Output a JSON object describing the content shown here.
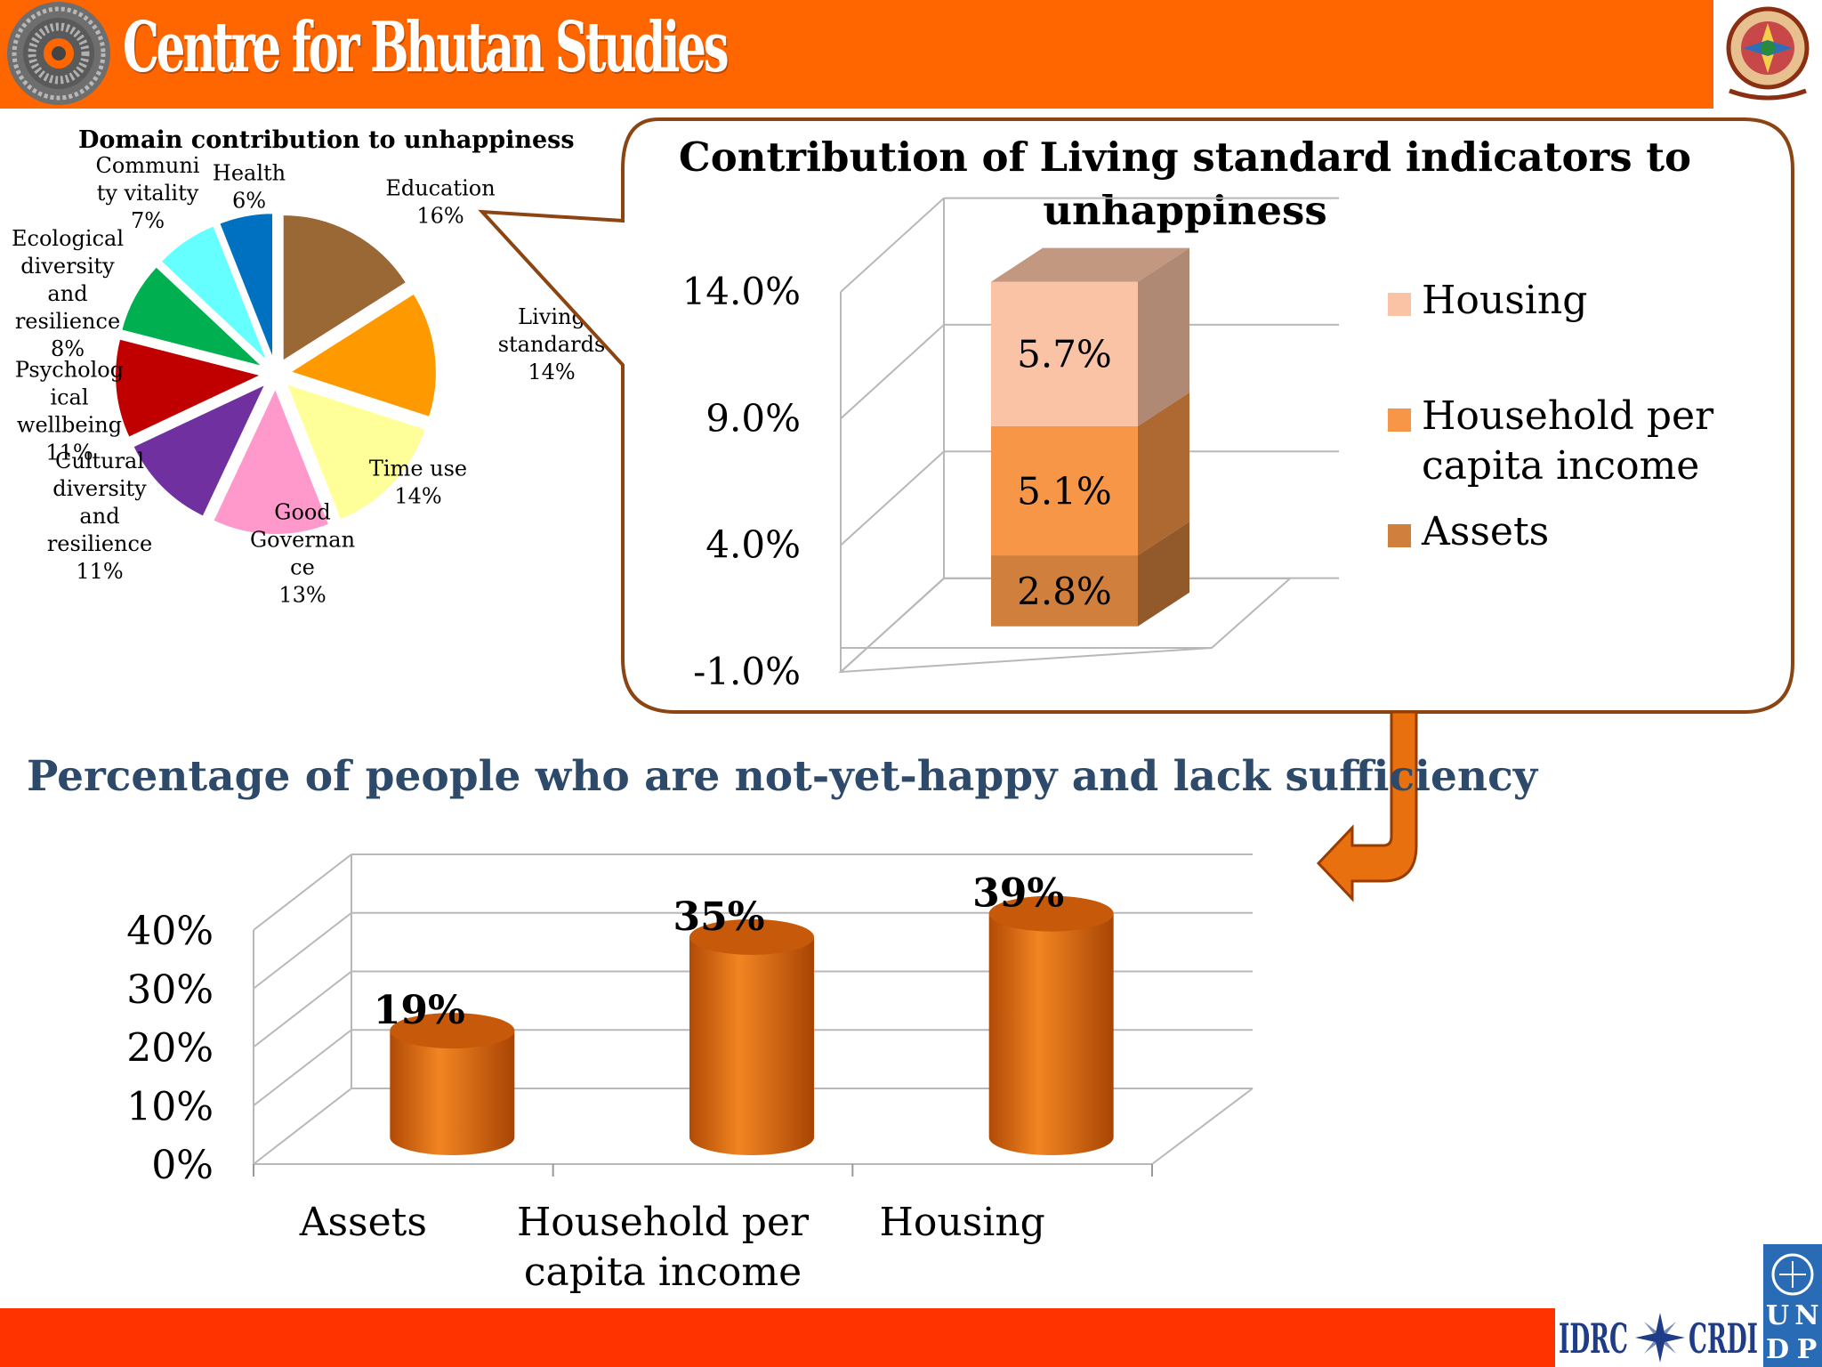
{
  "header": {
    "title": "Centre for Bhutan Studies"
  },
  "pie_chart_title": "Domain contribution to unhappiness",
  "callout_title_line1": "Contribution of Living standard indicators to",
  "callout_title_line2": "unhappiness",
  "bottom_title": "Percentage of people who are not-yet-happy and lack sufficiency",
  "footer": {
    "logo_idrc": "IDRC",
    "logo_crdi": "CRDI",
    "logo_undp": [
      "U",
      "N",
      "D",
      "P"
    ]
  },
  "colors": {
    "header": "#ff6600",
    "footer": "#ff3300",
    "callout_border": "#8b4513",
    "bottom_title": "#2e4a6b"
  },
  "chart_data": [
    {
      "type": "pie",
      "title": "Domain contribution to unhappiness",
      "slices": [
        {
          "label_lines": [
            "Education",
            "16%"
          ],
          "value": 16,
          "color": "#9a6834"
        },
        {
          "label_lines": [
            "Living",
            "standards",
            "14%"
          ],
          "value": 14,
          "color": "#ff9900"
        },
        {
          "label_lines": [
            "Time use",
            "14%"
          ],
          "value": 14,
          "color": "#ffff99"
        },
        {
          "label_lines": [
            "Good",
            "Governan",
            "ce",
            "13%"
          ],
          "value": 13,
          "color": "#ff99cc"
        },
        {
          "label_lines": [
            "Cultural",
            "diversity",
            "and",
            "resilience",
            "11%"
          ],
          "value": 11,
          "color": "#7030a0"
        },
        {
          "label_lines": [
            "Psycholog",
            "ical",
            "wellbeing",
            "11%"
          ],
          "value": 11,
          "color": "#c00000"
        },
        {
          "label_lines": [
            "Ecological",
            "diversity",
            "and",
            "resilience",
            "8%"
          ],
          "value": 8,
          "color": "#00b050"
        },
        {
          "label_lines": [
            "Communi",
            "ty vitality",
            "7%"
          ],
          "value": 7,
          "color": "#66ffff"
        },
        {
          "label_lines": [
            "Health",
            "6%"
          ],
          "value": 6,
          "color": "#0070c0"
        }
      ]
    },
    {
      "type": "bar",
      "stacked": true,
      "title": "Contribution of Living standard indicators to unhappiness",
      "ylim": [
        -1.0,
        14.0
      ],
      "yticks": [
        "14.0%",
        "9.0%",
        "4.0%",
        "-1.0%"
      ],
      "ytick_values": [
        14.0,
        9.0,
        4.0,
        -1.0
      ],
      "series": [
        {
          "name": "Assets",
          "value": 2.8,
          "label": "2.8%",
          "color": "#d0803c"
        },
        {
          "name": "Household per capita income",
          "value": 5.1,
          "label": "5.1%",
          "color": "#f79646"
        },
        {
          "name": "Housing",
          "value": 5.7,
          "label": "5.7%",
          "color": "#fac3a6"
        }
      ],
      "legend": [
        {
          "lines": [
            "Housing"
          ],
          "color": "#fac3a6"
        },
        {
          "lines": [
            "Household per",
            "capita income"
          ],
          "color": "#f79646"
        },
        {
          "lines": [
            "Assets"
          ],
          "color": "#d0803c"
        }
      ],
      "legend_position": "right"
    },
    {
      "type": "bar",
      "title": "Percentage of people who are not-yet-happy and lack sufficiency",
      "ylim": [
        0,
        40
      ],
      "yticks": [
        "40%",
        "30%",
        "20%",
        "10%",
        "0%"
      ],
      "ytick_values": [
        40,
        30,
        20,
        10,
        0
      ],
      "categories": [
        {
          "lines": [
            "Assets"
          ],
          "value": 19,
          "label": "19%"
        },
        {
          "lines": [
            "Household per",
            "capita income"
          ],
          "value": 35,
          "label": "35%"
        },
        {
          "lines": [
            "Housing"
          ],
          "value": 39,
          "label": "39%"
        }
      ],
      "bar_color": "#e8700f",
      "grid": true
    }
  ]
}
